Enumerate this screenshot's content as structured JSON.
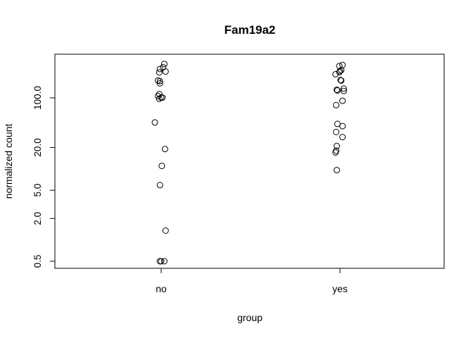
{
  "chart_data": {
    "type": "scatter",
    "title": "Fam19a2",
    "xlabel": "group",
    "ylabel": "normalized count",
    "y_scale": "log",
    "ylim": [
      0.5,
      320
    ],
    "categories": [
      "no",
      "yes"
    ],
    "yticks": [
      0.5,
      2.0,
      5.0,
      20.0,
      100.0
    ],
    "ytick_labels": [
      "0.5",
      "2.0",
      "5.0",
      "20.0",
      "100.0"
    ],
    "grid": false,
    "legend": "none",
    "series": [
      {
        "category": "no",
        "points": [
          {
            "jitter": 0.05,
            "y": 300
          },
          {
            "jitter": 0.03,
            "y": 270
          },
          {
            "jitter": -0.02,
            "y": 255
          },
          {
            "jitter": 0.07,
            "y": 235
          },
          {
            "jitter": -0.03,
            "y": 228
          },
          {
            "jitter": -0.05,
            "y": 175
          },
          {
            "jitter": -0.02,
            "y": 172
          },
          {
            "jitter": -0.02,
            "y": 160
          },
          {
            "jitter": -0.03,
            "y": 113
          },
          {
            "jitter": -0.05,
            "y": 106
          },
          {
            "jitter": 0.0,
            "y": 101
          },
          {
            "jitter": 0.02,
            "y": 101
          },
          {
            "jitter": -0.03,
            "y": 97
          },
          {
            "jitter": -0.1,
            "y": 45
          },
          {
            "jitter": 0.06,
            "y": 19
          },
          {
            "jitter": 0.01,
            "y": 11
          },
          {
            "jitter": -0.02,
            "y": 5.9
          },
          {
            "jitter": 0.07,
            "y": 1.35
          },
          {
            "jitter": -0.02,
            "y": 0.5
          },
          {
            "jitter": 0.0,
            "y": 0.5
          },
          {
            "jitter": 0.05,
            "y": 0.5
          }
        ]
      },
      {
        "category": "yes",
        "points": [
          {
            "jitter": 0.04,
            "y": 290
          },
          {
            "jitter": -0.01,
            "y": 280
          },
          {
            "jitter": 0.02,
            "y": 245
          },
          {
            "jitter": 0.0,
            "y": 238
          },
          {
            "jitter": -0.01,
            "y": 230
          },
          {
            "jitter": -0.07,
            "y": 215
          },
          {
            "jitter": 0.01,
            "y": 178
          },
          {
            "jitter": 0.02,
            "y": 175
          },
          {
            "jitter": 0.06,
            "y": 135
          },
          {
            "jitter": 0.06,
            "y": 125
          },
          {
            "jitter": -0.05,
            "y": 130
          },
          {
            "jitter": -0.04,
            "y": 127
          },
          {
            "jitter": 0.04,
            "y": 91
          },
          {
            "jitter": -0.06,
            "y": 79
          },
          {
            "jitter": -0.04,
            "y": 43
          },
          {
            "jitter": 0.04,
            "y": 40
          },
          {
            "jitter": -0.06,
            "y": 33
          },
          {
            "jitter": 0.04,
            "y": 28
          },
          {
            "jitter": -0.05,
            "y": 21
          },
          {
            "jitter": -0.06,
            "y": 18
          },
          {
            "jitter": -0.07,
            "y": 17
          },
          {
            "jitter": -0.05,
            "y": 9.6
          }
        ]
      }
    ]
  }
}
